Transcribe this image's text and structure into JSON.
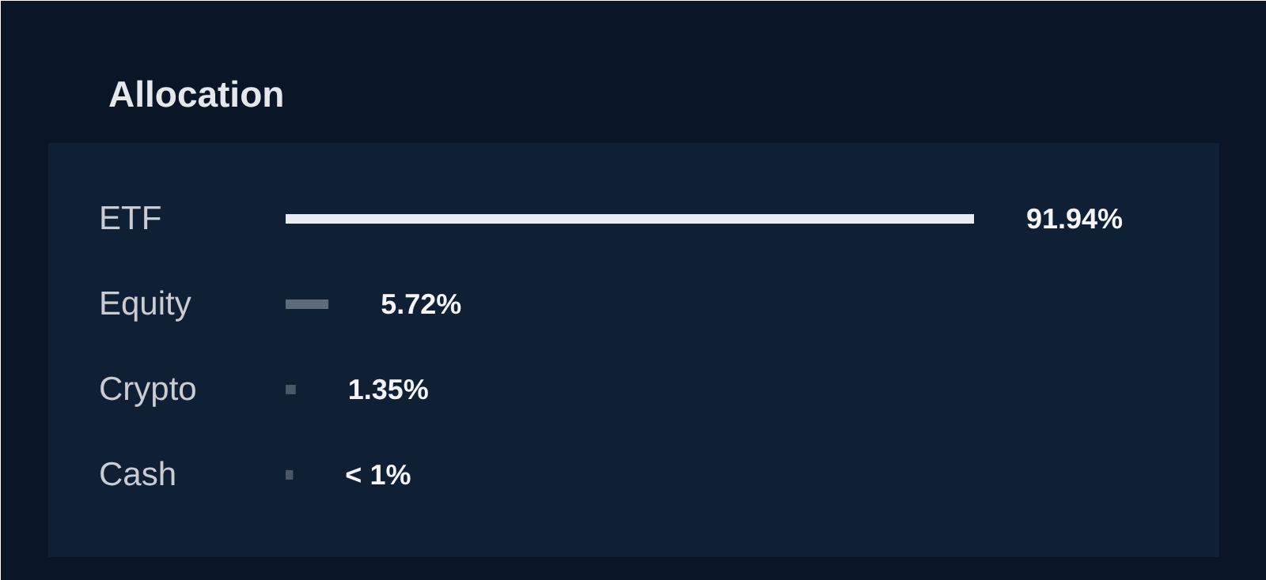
{
  "chart_data": {
    "type": "bar",
    "orientation": "horizontal",
    "title": "Allocation",
    "categories": [
      "ETF",
      "Equity",
      "Crypto",
      "Cash"
    ],
    "values": [
      91.94,
      5.72,
      1.35,
      0.99
    ],
    "value_labels": [
      "91.94%",
      "5.72%",
      "1.35%",
      "< 1%"
    ],
    "colors": [
      "#e9edf2",
      "#5d6b7a",
      "#4a5766",
      "#4a5766"
    ]
  }
}
